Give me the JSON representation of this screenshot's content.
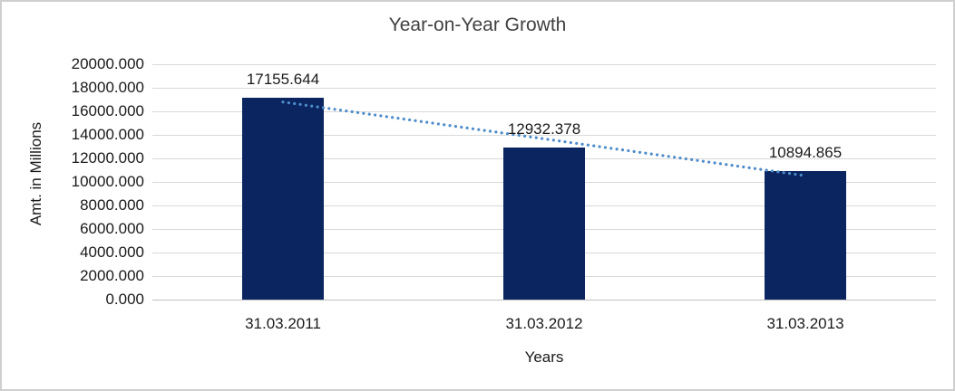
{
  "frame": {
    "background": "#FFFFFF",
    "border_color": "#CFCFCF"
  },
  "chart_data": {
    "type": "bar",
    "title": "Year-on-Year Growth",
    "xlabel": "Years",
    "ylabel": "Amt. in Millions",
    "categories": [
      "31.03.2011",
      "31.03.2012",
      "31.03.2013"
    ],
    "values": [
      17155.644,
      12932.378,
      10894.865
    ],
    "data_labels": [
      "17155.644",
      "12932.378",
      "10894.865"
    ],
    "ylim": [
      0,
      20000
    ],
    "ytick_step": 2000,
    "ytick_labels": [
      "20000.000",
      "18000.000",
      "16000.000",
      "14000.000",
      "12000.000",
      "10000.000",
      "8000.000",
      "6000.000",
      "4000.000",
      "2000.000",
      "0.000"
    ],
    "grid": true,
    "legend_position": "none",
    "colors": {
      "bar": "#0A2560",
      "trendline": "#4E8CCB",
      "gridline": "#D9D9D9",
      "axis_line": "#BFBFBF",
      "text": "#1a1a1a",
      "title_text": "#404040"
    },
    "trendline": {
      "type": "linear",
      "style": "dotted"
    }
  }
}
